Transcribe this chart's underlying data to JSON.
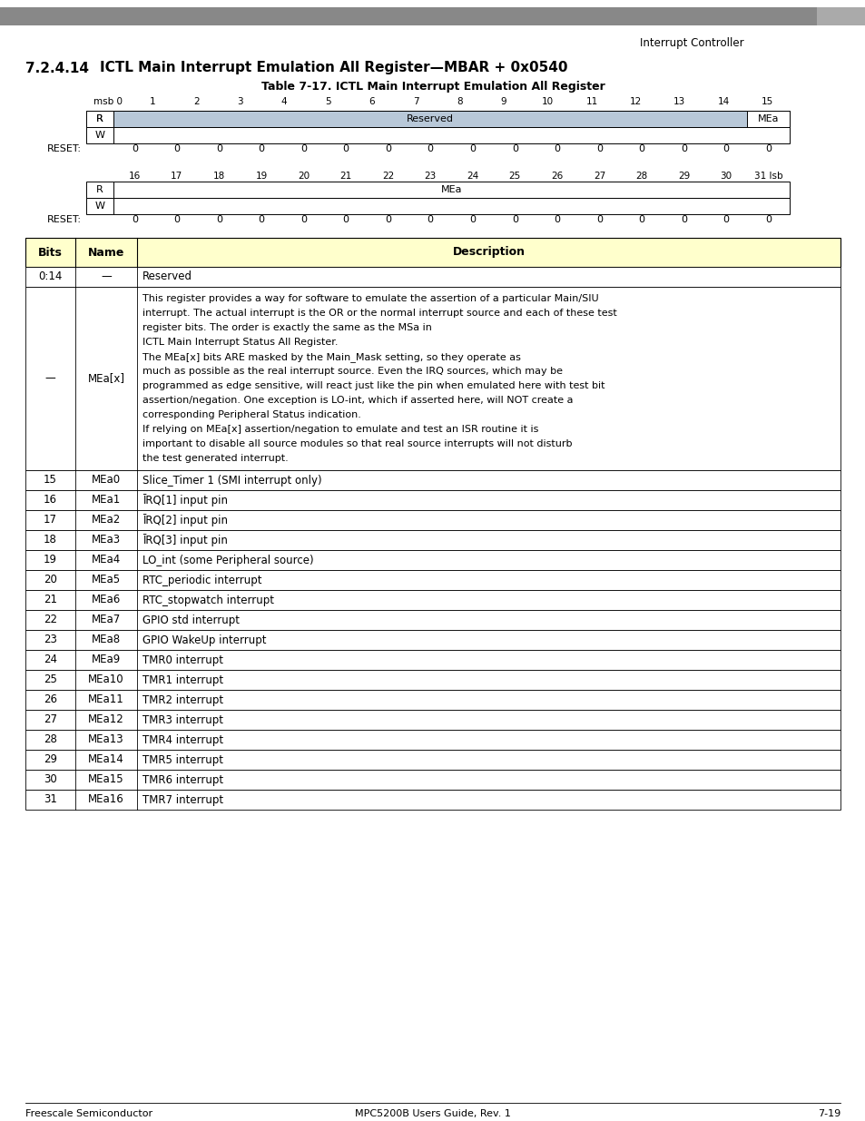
{
  "title_section": "7.2.4.14",
  "title_text": "ICTL Main Interrupt Emulation All Register—MBAR + 0x0540",
  "table_title": "Table 7-17. ICTL Main Interrupt Emulation All Register",
  "header_right": "Interrupt Controller",
  "footer_left": "Freescale Semiconductor",
  "footer_center": "MPC5200B Users Guide, Rev. 1",
  "footer_right": "7-19",
  "reg_bits_top": [
    "msb 0",
    "1",
    "2",
    "3",
    "4",
    "5",
    "6",
    "7",
    "8",
    "9",
    "10",
    "11",
    "12",
    "13",
    "14",
    "15"
  ],
  "reg_bits_bot": [
    "16",
    "17",
    "18",
    "19",
    "20",
    "21",
    "22",
    "23",
    "24",
    "25",
    "26",
    "27",
    "28",
    "29",
    "30",
    "31 lsb"
  ],
  "reg_top_cells": [
    {
      "label": "Reserved",
      "colspan": 15,
      "color": "#b8c8d8"
    },
    {
      "label": "MEa",
      "colspan": 1,
      "color": "#ffffff"
    }
  ],
  "reg_bot_cells": [
    {
      "label": "MEa",
      "colspan": 16,
      "color": "#ffffff"
    }
  ],
  "reset_top": [
    "0",
    "0",
    "0",
    "0",
    "0",
    "0",
    "0",
    "0",
    "0",
    "0",
    "0",
    "0",
    "0",
    "0",
    "0",
    "0"
  ],
  "reset_bot": [
    "0",
    "0",
    "0",
    "0",
    "0",
    "0",
    "0",
    "0",
    "0",
    "0",
    "0",
    "0",
    "0",
    "0",
    "0",
    "0"
  ],
  "desc_header_color": "#ffffcc",
  "desc_rows": [
    {
      "bits": "0:14",
      "name": "—",
      "desc": "Reserved"
    },
    {
      "bits": "—",
      "name": "MEa[x]",
      "desc": "This register provides a way for software to emulate the assertion of a particular Main/SIU\ninterrupt. The actual interrupt is the OR or the normal interrupt source and each of these test\nregister bits. The order is exactly the same as the MSa in\nICTL Main Interrupt Status All Register.\nThe MEa[x] bits ARE masked by the Main_Mask setting, so they operate as\nmuch as possible as the real interrupt source. Even the IRQ sources, which may be\nprogrammed as edge sensitive, will react just like the pin when emulated here with test bit\nassertion/negation. One exception is LO-int, which if asserted here, will NOT create a\ncorresponding Peripheral Status indication.\nIf relying on MEa[x] assertion/negation to emulate and test an ISR routine it is\nimportant to disable all source modules so that real source interrupts will not disturb\nthe test generated interrupt."
    },
    {
      "bits": "15",
      "name": "MEa0",
      "desc": "Slice_Timer 1 (SMI interrupt only)"
    },
    {
      "bits": "16",
      "name": "MEa1",
      "desc": "ĪRQ[1] input pin"
    },
    {
      "bits": "17",
      "name": "MEa2",
      "desc": "ĪRQ[2] input pin"
    },
    {
      "bits": "18",
      "name": "MEa3",
      "desc": "ĪRQ[3] input pin"
    },
    {
      "bits": "19",
      "name": "MEa4",
      "desc": "LO_int (some Peripheral source)"
    },
    {
      "bits": "20",
      "name": "MEa5",
      "desc": "RTC_periodic interrupt"
    },
    {
      "bits": "21",
      "name": "MEa6",
      "desc": "RTC_stopwatch interrupt"
    },
    {
      "bits": "22",
      "name": "MEa7",
      "desc": "GPIO std interrupt"
    },
    {
      "bits": "23",
      "name": "MEa8",
      "desc": "GPIO WakeUp interrupt"
    },
    {
      "bits": "24",
      "name": "MEa9",
      "desc": "TMR0 interrupt"
    },
    {
      "bits": "25",
      "name": "MEa10",
      "desc": "TMR1 interrupt"
    },
    {
      "bits": "26",
      "name": "MEa11",
      "desc": "TMR2 interrupt"
    },
    {
      "bits": "27",
      "name": "MEa12",
      "desc": "TMR3 interrupt"
    },
    {
      "bits": "28",
      "name": "MEa13",
      "desc": "TMR4 interrupt"
    },
    {
      "bits": "29",
      "name": "MEa14",
      "desc": "TMR5 interrupt"
    },
    {
      "bits": "30",
      "name": "MEa15",
      "desc": "TMR6 interrupt"
    },
    {
      "bits": "31",
      "name": "MEa16",
      "desc": "TMR7 interrupt"
    }
  ],
  "irq_overline_rows": [
    1,
    2,
    3
  ],
  "bg_color": "#ffffff",
  "border_color": "#000000",
  "gray_bar_color": "#808080"
}
